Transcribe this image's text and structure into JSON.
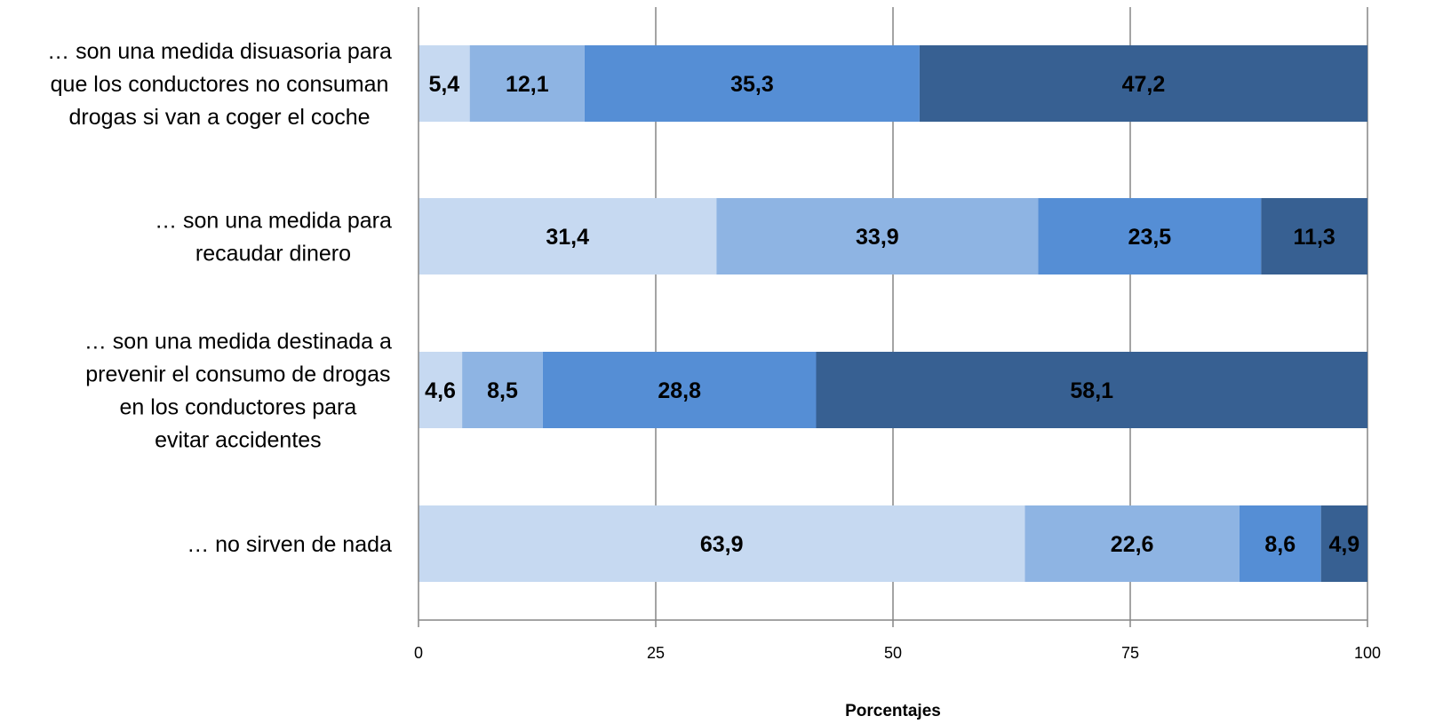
{
  "chart_data": {
    "type": "bar",
    "orientation": "horizontal",
    "stacked": true,
    "categories": [
      [
        "… son una medida disuasoria para",
        "que los conductores no consuman",
        "drogas si van a coger el coche"
      ],
      [
        "… son una medida para",
        "recaudar dinero"
      ],
      [
        "… son una medida destinada a",
        "prevenir el consumo de drogas",
        "en los conductores para",
        "evitar accidentes"
      ],
      [
        "… no sirven de nada"
      ]
    ],
    "series": [
      {
        "values": [
          5.4,
          31.4,
          4.6,
          63.9
        ],
        "labels": [
          "5,4",
          "31,4",
          "4,6",
          "63,9"
        ],
        "color": "#c6d9f1"
      },
      {
        "values": [
          12.1,
          33.9,
          8.5,
          22.6
        ],
        "labels": [
          "12,1",
          "33,9",
          "8,5",
          "22,6"
        ],
        "color": "#8eb4e3"
      },
      {
        "values": [
          35.3,
          23.5,
          28.8,
          8.6
        ],
        "labels": [
          "35,3",
          "23,5",
          "28,8",
          "8,6"
        ],
        "color": "#558ed5"
      },
      {
        "values": [
          47.2,
          11.3,
          58.1,
          4.9
        ],
        "labels": [
          "47,2",
          "11,3",
          "58,1",
          "4,9"
        ],
        "color": "#376092"
      }
    ],
    "xlim": [
      0,
      100
    ],
    "xticks": [
      0,
      25,
      50,
      75,
      100
    ],
    "xlabel": "Porcentajes",
    "grid": true,
    "legend": "none"
  }
}
